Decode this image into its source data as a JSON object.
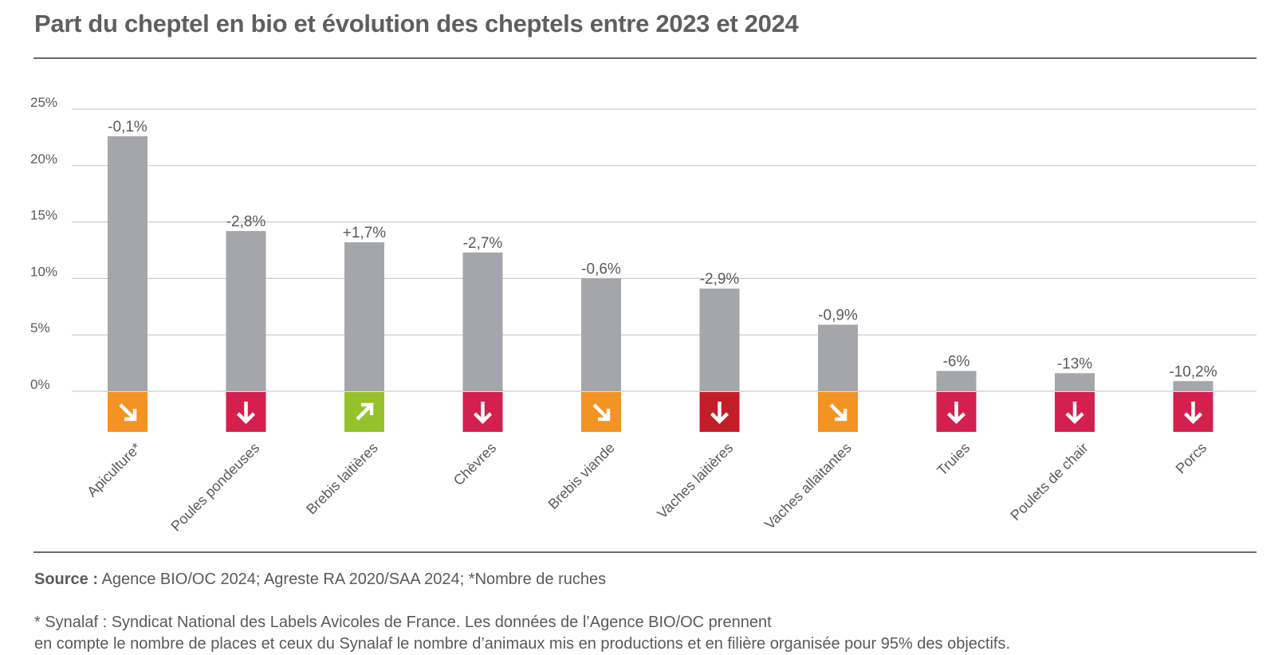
{
  "title": "Part du cheptel en bio et évolution des cheptels entre 2023 et 2024",
  "source_label": "Source :",
  "source_text": "Agence BIO/OC 2024; Agreste RA 2020/SAA 2024; *Nombre de ruches",
  "note_line1": "* Synalaf : Syndicat National des Labels Avicoles de France. Les données de l’Agence BIO/OC prennent",
  "note_line2": "en compte le nombre de places et ceux du Synalaf le nombre d’animaux mis en productions et en filière organisée pour 95% des objectifs.",
  "colors": {
    "bar": "#a5a6aa",
    "grid": "#bfbfbf",
    "slight_down": "#f39323",
    "down": "#d4204f",
    "strong_down": "#c41d2a",
    "up": "#95c22b"
  },
  "chart_data": {
    "type": "bar",
    "categories": [
      "Apiculture*",
      "Poules pondeuses",
      "Brebis laitières",
      "Chèvres",
      "Brebis viande",
      "Vaches laitières",
      "Vaches allaitantes",
      "Truies",
      "Poulets de chair",
      "Porcs"
    ],
    "values": [
      22.6,
      14.2,
      13.2,
      12.3,
      10.0,
      9.1,
      5.9,
      1.8,
      1.6,
      0.9
    ],
    "value_labels": [
      "-0,1%",
      "-2,8%",
      "+1,7%",
      "-2,7%",
      "-0,6%",
      "-2,9%",
      "-0,9%",
      "-6%",
      "-13%",
      "-10,2%"
    ],
    "trend": [
      "slight_down",
      "down",
      "up",
      "down",
      "slight_down",
      "strong_down",
      "slight_down",
      "down",
      "down",
      "down"
    ],
    "trend_icons": [
      "arrow-down-right-icon",
      "arrow-down-icon",
      "arrow-up-right-icon",
      "arrow-down-icon",
      "arrow-down-right-icon",
      "arrow-down-icon",
      "arrow-down-right-icon",
      "arrow-down-icon",
      "arrow-down-icon",
      "arrow-down-icon"
    ],
    "yticks": [
      "0%",
      "5%",
      "10%",
      "15%",
      "20%",
      "25%"
    ],
    "ylim": [
      0,
      25
    ],
    "grid": true
  }
}
